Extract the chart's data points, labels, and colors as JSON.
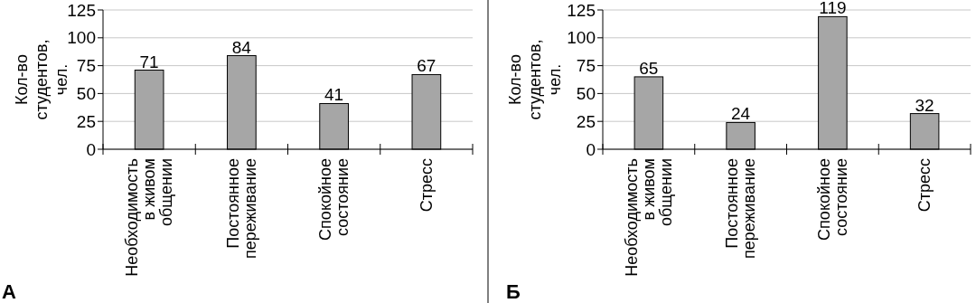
{
  "chart_data": [
    {
      "type": "bar",
      "title": "А",
      "ylabel": "Кол-во студентов, чел.",
      "categories": [
        "Необходимость в живом общении",
        "Постоянное переживание",
        "Спокойное состояние",
        "Стресс"
      ],
      "values": [
        71,
        84,
        41,
        67
      ],
      "color": "#a6a6a6",
      "ylim": [
        0,
        125
      ],
      "yticks": [
        0,
        25,
        50,
        75,
        100,
        125
      ],
      "grid": "y",
      "data_labels": true
    },
    {
      "type": "bar",
      "title": "Б",
      "ylabel": "Кол-во студентов, чел.",
      "categories": [
        "Необходимость в живом общении",
        "Постоянное переживание",
        "Спокойное состояние",
        "Стресс"
      ],
      "values": [
        65,
        24,
        119,
        32
      ],
      "color": "#a6a6a6",
      "ylim": [
        0,
        125
      ],
      "yticks": [
        0,
        25,
        50,
        75,
        100,
        125
      ],
      "grid": "y",
      "data_labels": true
    }
  ]
}
